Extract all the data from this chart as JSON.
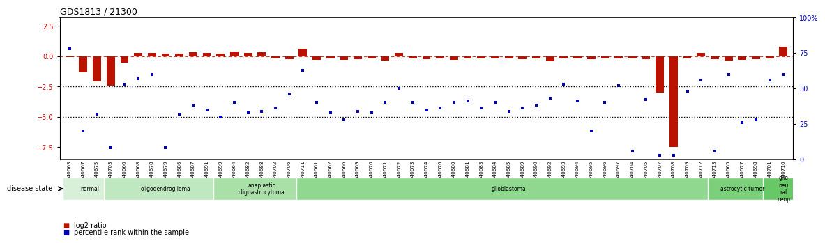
{
  "title": "GDS1813 / 21300",
  "samples": [
    "GSM40663",
    "GSM40667",
    "GSM40675",
    "GSM40703",
    "GSM40660",
    "GSM40668",
    "GSM40678",
    "GSM40679",
    "GSM40686",
    "GSM40687",
    "GSM40691",
    "GSM40699",
    "GSM40664",
    "GSM40682",
    "GSM40688",
    "GSM40702",
    "GSM40706",
    "GSM40711",
    "GSM40661",
    "GSM40662",
    "GSM40666",
    "GSM40669",
    "GSM40670",
    "GSM40671",
    "GSM40672",
    "GSM40673",
    "GSM40674",
    "GSM40676",
    "GSM40680",
    "GSM40681",
    "GSM40683",
    "GSM40684",
    "GSM40685",
    "GSM40689",
    "GSM40690",
    "GSM40692",
    "GSM40693",
    "GSM40694",
    "GSM40695",
    "GSM40696",
    "GSM40697",
    "GSM40704",
    "GSM40705",
    "GSM40707",
    "GSM40708",
    "GSM40709",
    "GSM40712",
    "GSM40713",
    "GSM40665",
    "GSM40677",
    "GSM40698",
    "GSM40701",
    "GSM40710"
  ],
  "log2_ratio": [
    -0.05,
    -1.3,
    -2.1,
    -2.4,
    -0.5,
    0.3,
    0.3,
    0.2,
    0.25,
    0.35,
    0.3,
    0.25,
    0.4,
    0.3,
    0.35,
    -0.2,
    -0.25,
    0.6,
    -0.3,
    -0.2,
    -0.3,
    -0.25,
    -0.2,
    -0.35,
    0.3,
    -0.2,
    -0.25,
    -0.2,
    -0.3,
    -0.2,
    -0.15,
    -0.2,
    -0.2,
    -0.25,
    -0.15,
    -0.4,
    -0.2,
    -0.15,
    -0.25,
    -0.2,
    -0.15,
    -0.2,
    -0.25,
    -3.0,
    -7.5,
    -0.2,
    0.3,
    -0.25,
    -0.35,
    -0.3,
    -0.25,
    -0.2,
    0.8
  ],
  "percentile_rank": [
    78,
    20,
    32,
    8,
    53,
    57,
    60,
    8,
    32,
    38,
    35,
    30,
    40,
    33,
    34,
    36,
    46,
    63,
    40,
    33,
    28,
    34,
    33,
    40,
    50,
    40,
    35,
    36,
    40,
    41,
    36,
    40,
    34,
    36,
    38,
    43,
    53,
    41,
    20,
    40,
    52,
    6,
    42,
    3,
    3,
    48,
    56,
    6,
    60,
    26,
    28,
    56,
    60
  ],
  "disease_groups": [
    {
      "label": "normal",
      "start": 0,
      "end": 3,
      "color": "#d8f0d8"
    },
    {
      "label": "oligodendroglioma",
      "start": 3,
      "end": 11,
      "color": "#c0e8c0"
    },
    {
      "label": "anaplastic\noligoastrocytoma",
      "start": 11,
      "end": 17,
      "color": "#a8e0a8"
    },
    {
      "label": "glioblastoma",
      "start": 17,
      "end": 47,
      "color": "#90d890"
    },
    {
      "label": "astrocytic tumor",
      "start": 47,
      "end": 51,
      "color": "#7cd07c"
    },
    {
      "label": "glio\nneu\nral\nneop",
      "start": 51,
      "end": 53,
      "color": "#68c868"
    }
  ],
  "ylim_left": [
    -8.5,
    3.2
  ],
  "ylim_right": [
    0,
    100
  ],
  "yticks_left": [
    2.5,
    0,
    -2.5,
    -5.0,
    -7.5
  ],
  "yticks_right": [
    0,
    25,
    50,
    75,
    100
  ],
  "hline_dotted": [
    -2.5,
    -5.0
  ],
  "bar_color": "#bb1100",
  "dot_color": "#0000bb",
  "legend_items": [
    {
      "label": "log2 ratio",
      "color": "#bb1100"
    },
    {
      "label": "percentile rank within the sample",
      "color": "#0000bb"
    }
  ]
}
